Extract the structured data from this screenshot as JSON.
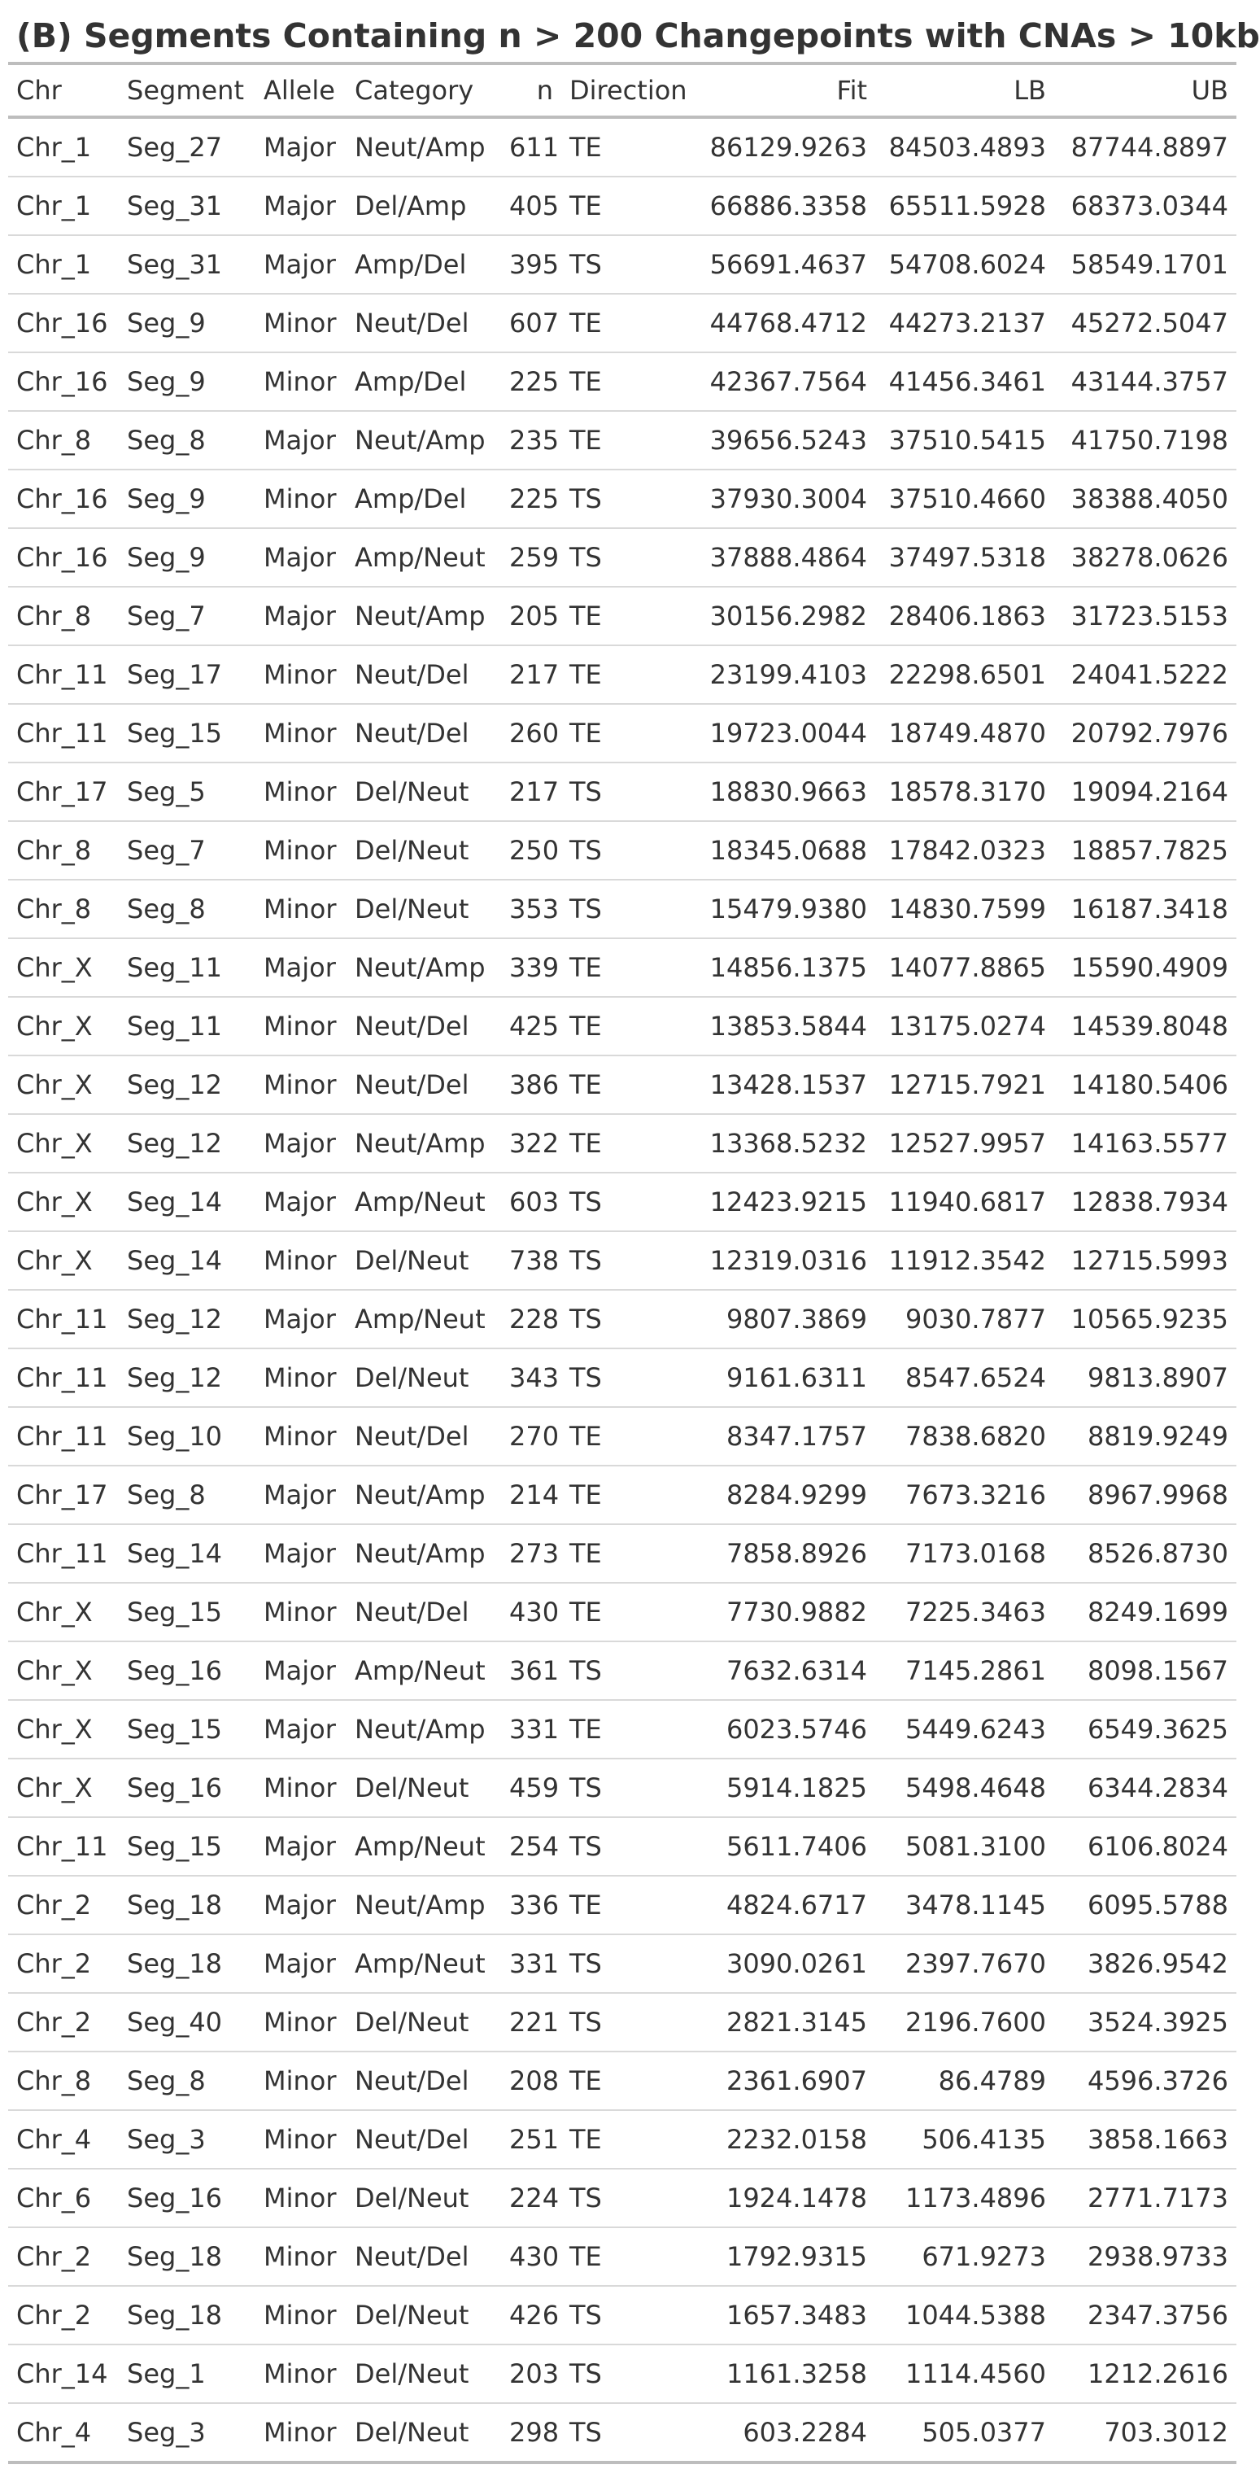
{
  "title": "(B) Segments Containing n > 200 Changepoints with CNAs > 10kb",
  "columns": [
    "Chr",
    "Segment",
    "Allele",
    "Category",
    "n",
    "Direction",
    "Fit",
    "LB",
    "UB"
  ],
  "rows": [
    [
      "Chr_1",
      "Seg_27",
      "Major",
      "Neut/Amp",
      "611",
      "TE",
      "86129.9263",
      "84503.4893",
      "87744.8897"
    ],
    [
      "Chr_1",
      "Seg_31",
      "Major",
      "Del/Amp",
      "405",
      "TE",
      "66886.3358",
      "65511.5928",
      "68373.0344"
    ],
    [
      "Chr_1",
      "Seg_31",
      "Major",
      "Amp/Del",
      "395",
      "TS",
      "56691.4637",
      "54708.6024",
      "58549.1701"
    ],
    [
      "Chr_16",
      "Seg_9",
      "Minor",
      "Neut/Del",
      "607",
      "TE",
      "44768.4712",
      "44273.2137",
      "45272.5047"
    ],
    [
      "Chr_16",
      "Seg_9",
      "Minor",
      "Amp/Del",
      "225",
      "TE",
      "42367.7564",
      "41456.3461",
      "43144.3757"
    ],
    [
      "Chr_8",
      "Seg_8",
      "Major",
      "Neut/Amp",
      "235",
      "TE",
      "39656.5243",
      "37510.5415",
      "41750.7198"
    ],
    [
      "Chr_16",
      "Seg_9",
      "Minor",
      "Amp/Del",
      "225",
      "TS",
      "37930.3004",
      "37510.4660",
      "38388.4050"
    ],
    [
      "Chr_16",
      "Seg_9",
      "Major",
      "Amp/Neut",
      "259",
      "TS",
      "37888.4864",
      "37497.5318",
      "38278.0626"
    ],
    [
      "Chr_8",
      "Seg_7",
      "Major",
      "Neut/Amp",
      "205",
      "TE",
      "30156.2982",
      "28406.1863",
      "31723.5153"
    ],
    [
      "Chr_11",
      "Seg_17",
      "Minor",
      "Neut/Del",
      "217",
      "TE",
      "23199.4103",
      "22298.6501",
      "24041.5222"
    ],
    [
      "Chr_11",
      "Seg_15",
      "Minor",
      "Neut/Del",
      "260",
      "TE",
      "19723.0044",
      "18749.4870",
      "20792.7976"
    ],
    [
      "Chr_17",
      "Seg_5",
      "Minor",
      "Del/Neut",
      "217",
      "TS",
      "18830.9663",
      "18578.3170",
      "19094.2164"
    ],
    [
      "Chr_8",
      "Seg_7",
      "Minor",
      "Del/Neut",
      "250",
      "TS",
      "18345.0688",
      "17842.0323",
      "18857.7825"
    ],
    [
      "Chr_8",
      "Seg_8",
      "Minor",
      "Del/Neut",
      "353",
      "TS",
      "15479.9380",
      "14830.7599",
      "16187.3418"
    ],
    [
      "Chr_X",
      "Seg_11",
      "Major",
      "Neut/Amp",
      "339",
      "TE",
      "14856.1375",
      "14077.8865",
      "15590.4909"
    ],
    [
      "Chr_X",
      "Seg_11",
      "Minor",
      "Neut/Del",
      "425",
      "TE",
      "13853.5844",
      "13175.0274",
      "14539.8048"
    ],
    [
      "Chr_X",
      "Seg_12",
      "Minor",
      "Neut/Del",
      "386",
      "TE",
      "13428.1537",
      "12715.7921",
      "14180.5406"
    ],
    [
      "Chr_X",
      "Seg_12",
      "Major",
      "Neut/Amp",
      "322",
      "TE",
      "13368.5232",
      "12527.9957",
      "14163.5577"
    ],
    [
      "Chr_X",
      "Seg_14",
      "Major",
      "Amp/Neut",
      "603",
      "TS",
      "12423.9215",
      "11940.6817",
      "12838.7934"
    ],
    [
      "Chr_X",
      "Seg_14",
      "Minor",
      "Del/Neut",
      "738",
      "TS",
      "12319.0316",
      "11912.3542",
      "12715.5993"
    ],
    [
      "Chr_11",
      "Seg_12",
      "Major",
      "Amp/Neut",
      "228",
      "TS",
      "9807.3869",
      "9030.7877",
      "10565.9235"
    ],
    [
      "Chr_11",
      "Seg_12",
      "Minor",
      "Del/Neut",
      "343",
      "TS",
      "9161.6311",
      "8547.6524",
      "9813.8907"
    ],
    [
      "Chr_11",
      "Seg_10",
      "Minor",
      "Neut/Del",
      "270",
      "TE",
      "8347.1757",
      "7838.6820",
      "8819.9249"
    ],
    [
      "Chr_17",
      "Seg_8",
      "Major",
      "Neut/Amp",
      "214",
      "TE",
      "8284.9299",
      "7673.3216",
      "8967.9968"
    ],
    [
      "Chr_11",
      "Seg_14",
      "Major",
      "Neut/Amp",
      "273",
      "TE",
      "7858.8926",
      "7173.0168",
      "8526.8730"
    ],
    [
      "Chr_X",
      "Seg_15",
      "Minor",
      "Neut/Del",
      "430",
      "TE",
      "7730.9882",
      "7225.3463",
      "8249.1699"
    ],
    [
      "Chr_X",
      "Seg_16",
      "Major",
      "Amp/Neut",
      "361",
      "TS",
      "7632.6314",
      "7145.2861",
      "8098.1567"
    ],
    [
      "Chr_X",
      "Seg_15",
      "Major",
      "Neut/Amp",
      "331",
      "TE",
      "6023.5746",
      "5449.6243",
      "6549.3625"
    ],
    [
      "Chr_X",
      "Seg_16",
      "Minor",
      "Del/Neut",
      "459",
      "TS",
      "5914.1825",
      "5498.4648",
      "6344.2834"
    ],
    [
      "Chr_11",
      "Seg_15",
      "Major",
      "Amp/Neut",
      "254",
      "TS",
      "5611.7406",
      "5081.3100",
      "6106.8024"
    ],
    [
      "Chr_2",
      "Seg_18",
      "Major",
      "Neut/Amp",
      "336",
      "TE",
      "4824.6717",
      "3478.1145",
      "6095.5788"
    ],
    [
      "Chr_2",
      "Seg_18",
      "Major",
      "Amp/Neut",
      "331",
      "TS",
      "3090.0261",
      "2397.7670",
      "3826.9542"
    ],
    [
      "Chr_2",
      "Seg_40",
      "Minor",
      "Del/Neut",
      "221",
      "TS",
      "2821.3145",
      "2196.7600",
      "3524.3925"
    ],
    [
      "Chr_8",
      "Seg_8",
      "Minor",
      "Neut/Del",
      "208",
      "TE",
      "2361.6907",
      "86.4789",
      "4596.3726"
    ],
    [
      "Chr_4",
      "Seg_3",
      "Minor",
      "Neut/Del",
      "251",
      "TE",
      "2232.0158",
      "506.4135",
      "3858.1663"
    ],
    [
      "Chr_6",
      "Seg_16",
      "Minor",
      "Del/Neut",
      "224",
      "TS",
      "1924.1478",
      "1173.4896",
      "2771.7173"
    ],
    [
      "Chr_2",
      "Seg_18",
      "Minor",
      "Neut/Del",
      "430",
      "TE",
      "1792.9315",
      "671.9273",
      "2938.9733"
    ],
    [
      "Chr_2",
      "Seg_18",
      "Minor",
      "Del/Neut",
      "426",
      "TS",
      "1657.3483",
      "1044.5388",
      "2347.3756"
    ],
    [
      "Chr_14",
      "Seg_1",
      "Minor",
      "Del/Neut",
      "203",
      "TS",
      "1161.3258",
      "1114.4560",
      "1212.2616"
    ],
    [
      "Chr_4",
      "Seg_3",
      "Minor",
      "Del/Neut",
      "298",
      "TS",
      "603.2284",
      "505.0377",
      "703.3012"
    ]
  ]
}
